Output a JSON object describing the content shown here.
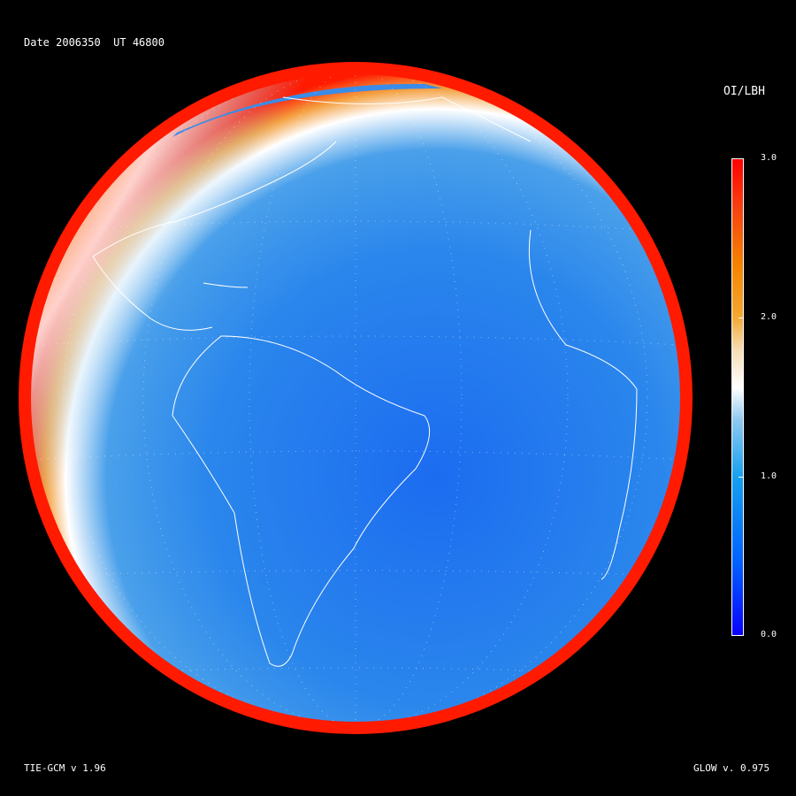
{
  "header": {
    "date_label": "Date 2006350",
    "ut_label": "UT 46800"
  },
  "colorbar": {
    "title": "OI/LBH",
    "ticks": [
      "3.0",
      "2.0",
      "1.0",
      "0.0"
    ],
    "range": [
      0.0,
      3.0
    ],
    "colors": {
      "low": "#0a00ff",
      "mid": "#ffffff",
      "high": "#ff0000"
    }
  },
  "footer": {
    "model_label": "TIE-GCM v 1.96",
    "glow_label": "GLOW v. 0.975"
  }
}
